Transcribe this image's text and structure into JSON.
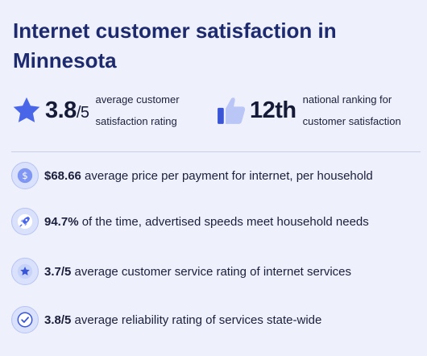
{
  "title": "Internet customer satisfaction in Minnesota",
  "headline_stats": [
    {
      "icon": "star-icon",
      "value": "3.8",
      "suffix": "/5",
      "caption_line1": "average customer",
      "caption_line2": "satisfaction rating"
    },
    {
      "icon": "thumbs-up-icon",
      "value": "12",
      "suffix": "th",
      "caption_line1": "national ranking for",
      "caption_line2": "customer satisfaction"
    }
  ],
  "facts": [
    {
      "icon": "dollar-icon",
      "value": "$68.66",
      "text": " average price per payment for internet, per household"
    },
    {
      "icon": "rocket-icon",
      "value": "94.7%",
      "text": " of the time, advertised speeds meet household needs"
    },
    {
      "icon": "star-icon",
      "value": "3.7/5",
      "text": " average customer service rating of internet services"
    },
    {
      "icon": "checkmark-icon",
      "value": "3.8/5",
      "text": " average reliability rating of services state-wide"
    }
  ],
  "colors": {
    "background": "#eef1fc",
    "title": "#1e2a6e",
    "accent": "#4a66e8",
    "icon_circle": "#d9e1fb"
  }
}
